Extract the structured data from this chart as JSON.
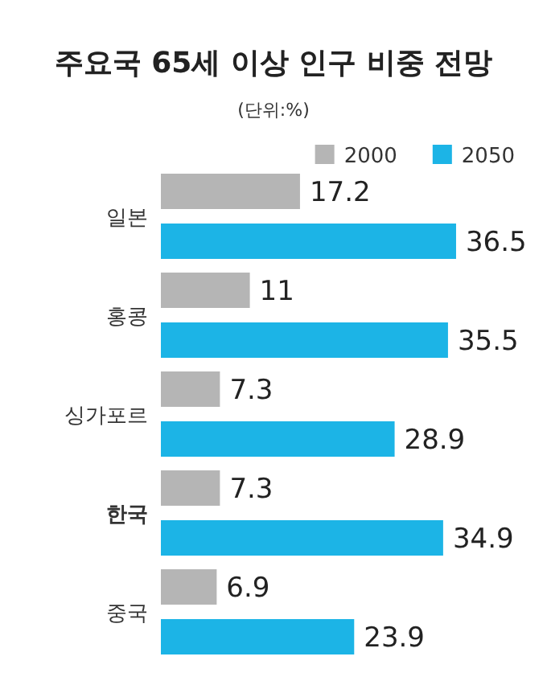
{
  "chart_data": {
    "type": "bar",
    "orientation": "horizontal",
    "title": "주요국 65세 이상 인구 비중 전망",
    "subtitle": "(단위:%)",
    "categories": [
      "일본",
      "홍콩",
      "싱가포르",
      "**한국**",
      "중국"
    ],
    "series": [
      {
        "name": "2000",
        "color": "#b5b5b5",
        "values": [
          17.2,
          11,
          7.3,
          7.3,
          6.9
        ]
      },
      {
        "name": "2050",
        "color": "#1cb4e6",
        "values": [
          36.5,
          35.5,
          28.9,
          34.9,
          23.9
        ]
      }
    ],
    "data_labels": true,
    "legend": "top right"
  }
}
